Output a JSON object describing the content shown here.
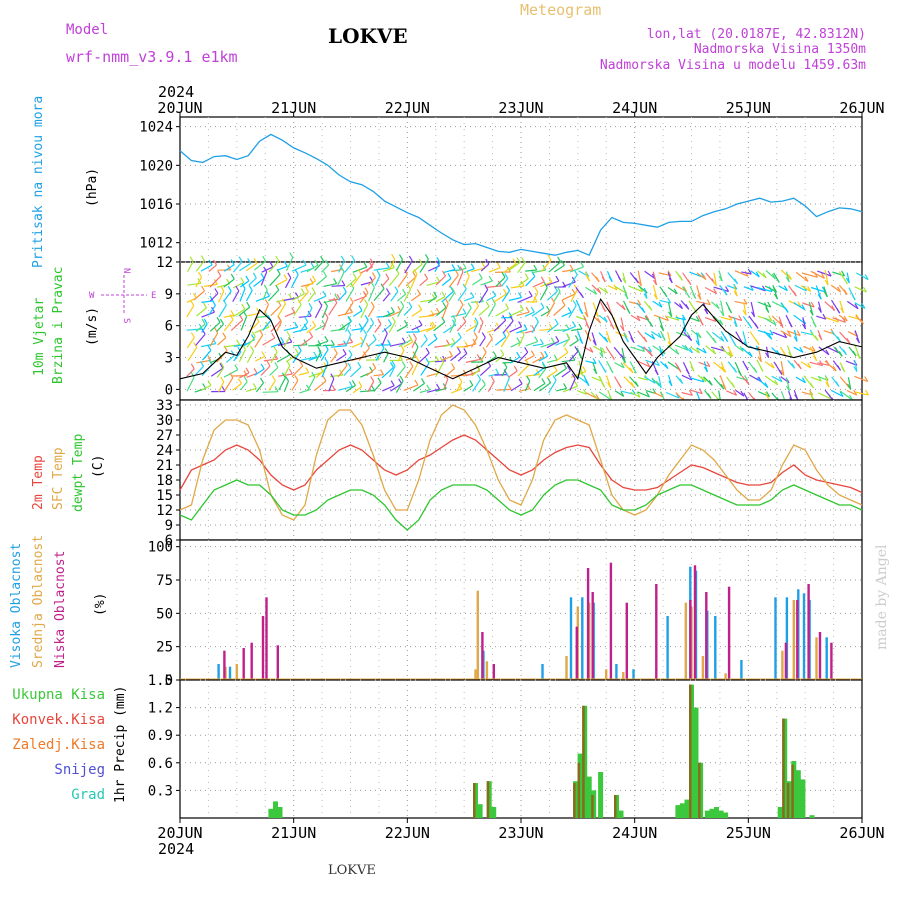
{
  "header": {
    "model_label": "Model",
    "model_name": "wrf-nmm_v3.9.1 e1km",
    "station": "LOKVE",
    "kind": "Meteogram",
    "coords": "lon,lat (20.0187E, 42.8312N)",
    "elevation": "Nadmorska Visina 1350m",
    "model_elevation": "Nadmorska Visina u modelu 1459.63m",
    "year": "2024",
    "footer_station": "LOKVE",
    "watermark": "made by Angel"
  },
  "days": [
    "20JUN",
    "21JUN",
    "22JUN",
    "23JUN",
    "24JUN",
    "25JUN",
    "26JUN"
  ],
  "panel_labels": {
    "pressure": "Pritisak na nivou mora",
    "pressure_unit": "(hPa)",
    "wind_a": "10m Vjetar",
    "wind_b": "Brzina i Pravac",
    "wind_unit": "(m/s)",
    "wind_rose_n": "N",
    "wind_rose_s": "S",
    "wind_rose_w": "W",
    "wind_rose_e": "E",
    "temp_2m": "2m Temp",
    "temp_sfc": "SFC Temp",
    "temp_dew": "dewpt Temp",
    "temp_unit": "(C)",
    "cloud_high": "Visoka Oblacnost",
    "cloud_mid": "Srednja Oblacnost",
    "cloud_low": "Niska Oblacnost",
    "cloud_unit": "(%)",
    "precip_axis": "1hr Precip (mm)"
  },
  "precip_legend": [
    "Ukupna Kisa",
    "Konvek.Kisa",
    "Zaledj.Kisa",
    "Snijeg",
    "Grad"
  ],
  "colors": {
    "pressure": "#1fa0e6",
    "temp_2m": "#e8463c",
    "temp_sfc": "#e0a848",
    "temp_dew": "#2ec62e",
    "cloud_high": "#1fa0e6",
    "cloud_mid": "#e0a848",
    "cloud_low": "#c0208a",
    "precip_total": "#3cc83c",
    "precip_conv": "#e8463c",
    "precip_frz": "#f07a28",
    "precip_snow": "#5050d8",
    "precip_hail": "#28c8b4",
    "title_purple": "#c040d8",
    "title_orange": "#e8c070"
  },
  "chart_data": [
    {
      "type": "line",
      "name": "pressure",
      "ylabel": "Pritisak na nivou mora (hPa)",
      "ylim": [
        1010,
        1025
      ],
      "yticks": [
        1012,
        1016,
        1020,
        1024
      ],
      "x_days": [
        0,
        0.1,
        0.2,
        0.3,
        0.4,
        0.5,
        0.6,
        0.7,
        0.8,
        0.9,
        1.0,
        1.1,
        1.2,
        1.3,
        1.4,
        1.5,
        1.6,
        1.7,
        1.8,
        1.9,
        2.0,
        2.1,
        2.2,
        2.3,
        2.4,
        2.5,
        2.6,
        2.7,
        2.8,
        2.9,
        3.0,
        3.1,
        3.2,
        3.3,
        3.4,
        3.5,
        3.6,
        3.7,
        3.8,
        3.9,
        4.0,
        4.1,
        4.2,
        4.3,
        4.4,
        4.5,
        4.6,
        4.7,
        4.8,
        4.9,
        5.0,
        5.1,
        5.2,
        5.3,
        5.4,
        5.5,
        5.6,
        5.7,
        5.8,
        5.9,
        6.0
      ],
      "values": [
        1021.5,
        1020.5,
        1020.3,
        1020.9,
        1021.0,
        1020.6,
        1021.0,
        1022.5,
        1023.2,
        1022.6,
        1021.8,
        1021.3,
        1020.7,
        1020.0,
        1019.0,
        1018.3,
        1018.0,
        1017.3,
        1016.3,
        1015.7,
        1015.1,
        1014.6,
        1013.8,
        1013.0,
        1012.3,
        1011.8,
        1011.9,
        1011.5,
        1011.1,
        1011.0,
        1011.3,
        1011.1,
        1010.9,
        1010.7,
        1011.0,
        1011.2,
        1010.7,
        1013.3,
        1014.6,
        1014.1,
        1014.0,
        1013.8,
        1013.6,
        1014.1,
        1014.2,
        1014.2,
        1014.8,
        1015.2,
        1015.5,
        1016.0,
        1016.3,
        1016.6,
        1016.2,
        1016.3,
        1016.6,
        1015.8,
        1014.7,
        1015.2,
        1015.6,
        1015.5,
        1015.2
      ]
    },
    {
      "type": "line",
      "name": "wind",
      "ylabel": "10m Vjetar Brzina i Pravac (m/s)",
      "ylim": [
        -1,
        12
      ],
      "yticks": [
        0,
        3,
        6,
        9,
        12
      ],
      "x_days": [
        0,
        0.2,
        0.4,
        0.5,
        0.6,
        0.7,
        0.8,
        0.9,
        1.0,
        1.2,
        1.4,
        1.6,
        1.8,
        2.0,
        2.2,
        2.4,
        2.6,
        2.8,
        3.0,
        3.2,
        3.4,
        3.5,
        3.6,
        3.7,
        3.8,
        3.9,
        4.0,
        4.1,
        4.2,
        4.4,
        4.5,
        4.6,
        4.8,
        5.0,
        5.2,
        5.4,
        5.6,
        5.8,
        6.0
      ],
      "values": [
        1.0,
        1.5,
        3.5,
        3.2,
        5.0,
        7.5,
        6.5,
        4.0,
        3.0,
        2.0,
        2.5,
        3.0,
        3.5,
        3.0,
        2.0,
        1.0,
        2.0,
        3.0,
        2.5,
        2.0,
        2.5,
        1.0,
        5.5,
        8.5,
        7.0,
        4.5,
        3.0,
        1.5,
        3.0,
        5.0,
        7.0,
        8.0,
        5.5,
        4.0,
        3.5,
        3.0,
        3.5,
        4.5,
        4.0
      ]
    },
    {
      "type": "line",
      "name": "temperature",
      "ylabel": "(C)",
      "ylim": [
        6,
        34
      ],
      "yticks": [
        6,
        9,
        12,
        15,
        18,
        21,
        24,
        27,
        30,
        33
      ],
      "x_days": [
        0,
        0.1,
        0.2,
        0.3,
        0.4,
        0.5,
        0.6,
        0.7,
        0.8,
        0.9,
        1.0,
        1.1,
        1.2,
        1.3,
        1.4,
        1.5,
        1.6,
        1.7,
        1.8,
        1.9,
        2.0,
        2.1,
        2.2,
        2.3,
        2.4,
        2.5,
        2.6,
        2.7,
        2.8,
        2.9,
        3.0,
        3.1,
        3.2,
        3.3,
        3.4,
        3.5,
        3.6,
        3.7,
        3.8,
        3.9,
        4.0,
        4.1,
        4.2,
        4.3,
        4.4,
        4.5,
        4.6,
        4.7,
        4.8,
        4.9,
        5.0,
        5.1,
        5.2,
        5.3,
        5.4,
        5.5,
        5.6,
        5.7,
        5.8,
        5.9,
        6.0
      ],
      "series": [
        {
          "name": "2m Temp",
          "values": [
            16.0,
            20.0,
            21.0,
            22.0,
            24.0,
            25.0,
            24.0,
            22.0,
            19.0,
            17.0,
            16.0,
            17.0,
            20.0,
            22.0,
            24.0,
            25.0,
            24.0,
            22.0,
            20.0,
            19.0,
            20.0,
            22.0,
            23.0,
            24.5,
            26.0,
            27.0,
            26.0,
            24.0,
            22.0,
            20.0,
            19.0,
            20.0,
            22.0,
            23.5,
            24.5,
            25.0,
            24.5,
            21.0,
            18.0,
            16.5,
            16.0,
            16.0,
            16.5,
            18.0,
            19.5,
            21.0,
            20.5,
            19.5,
            18.5,
            17.5,
            17.0,
            17.0,
            17.5,
            19.5,
            21.0,
            19.0,
            18.0,
            17.5,
            17.0,
            16.5,
            15.5
          ]
        },
        {
          "name": "SFC Temp",
          "values": [
            12.0,
            13.0,
            22.0,
            28.0,
            30.0,
            30.0,
            29.0,
            24.0,
            15.0,
            11.0,
            10.0,
            13.0,
            23.0,
            30.0,
            32.0,
            32.0,
            29.0,
            23.0,
            16.0,
            12.0,
            12.0,
            18.0,
            26.0,
            31.0,
            33.0,
            32.0,
            29.0,
            24.0,
            18.0,
            14.0,
            13.0,
            18.0,
            26.0,
            30.0,
            31.0,
            30.0,
            29.0,
            22.0,
            15.0,
            12.0,
            11.0,
            12.0,
            15.0,
            19.0,
            22.0,
            25.0,
            24.0,
            22.0,
            19.0,
            16.0,
            14.0,
            14.0,
            16.0,
            21.0,
            25.0,
            24.0,
            20.0,
            17.0,
            15.0,
            14.0,
            13.0
          ]
        },
        {
          "name": "dewpt Temp",
          "values": [
            11.0,
            10.0,
            13.0,
            16.0,
            17.0,
            18.0,
            17.0,
            17.0,
            15.0,
            12.0,
            11.0,
            11.0,
            12.0,
            14.0,
            15.0,
            16.0,
            16.0,
            15.0,
            13.0,
            10.0,
            8.0,
            10.0,
            14.0,
            16.0,
            17.0,
            17.0,
            17.0,
            16.0,
            14.0,
            12.0,
            11.0,
            12.0,
            15.0,
            17.0,
            18.0,
            18.0,
            17.0,
            16.0,
            13.0,
            12.0,
            12.0,
            13.0,
            15.0,
            16.0,
            17.0,
            17.0,
            16.0,
            15.0,
            14.0,
            13.0,
            13.0,
            13.0,
            14.0,
            16.0,
            17.0,
            16.0,
            15.0,
            14.0,
            13.0,
            13.0,
            12.0
          ]
        }
      ]
    },
    {
      "type": "bar",
      "name": "cloud",
      "ylabel": "(%)",
      "ylim": [
        0,
        105
      ],
      "yticks": [
        0,
        25,
        50,
        75,
        100
      ],
      "series": [
        {
          "name": "Visoka Oblacnost",
          "x": [
            0.35,
            0.45,
            2.68,
            3.2,
            3.45,
            3.55,
            3.65,
            3.85,
            4.0,
            4.3,
            4.5,
            4.55,
            4.65,
            4.72,
            4.95,
            5.25,
            5.35,
            5.45,
            5.5,
            5.55,
            5.7
          ],
          "values": [
            12,
            10,
            22,
            12,
            62,
            62,
            58,
            12,
            8,
            48,
            85,
            82,
            52,
            48,
            15,
            62,
            62,
            68,
            65,
            60,
            32
          ]
        },
        {
          "name": "Srednja Oblacnost",
          "x": [
            0.4,
            0.5,
            2.6,
            2.62,
            2.7,
            3.4,
            3.5,
            3.6,
            3.75,
            3.9,
            4.45,
            4.5,
            4.6,
            4.8,
            5.3,
            5.4,
            5.6
          ],
          "values": [
            10,
            12,
            8,
            67,
            14,
            18,
            55,
            58,
            8,
            6,
            58,
            55,
            18,
            5,
            22,
            60,
            32
          ]
        },
        {
          "name": "Niska Oblacnost",
          "x": [
            0.38,
            0.55,
            0.62,
            0.72,
            0.75,
            0.85,
            2.65,
            2.75,
            3.48,
            3.58,
            3.62,
            3.78,
            3.92,
            4.18,
            4.48,
            4.52,
            4.62,
            4.82,
            5.32,
            5.42,
            5.52,
            5.62,
            5.72
          ],
          "values": [
            22,
            24,
            28,
            48,
            62,
            26,
            36,
            12,
            40,
            84,
            66,
            88,
            58,
            72,
            60,
            86,
            66,
            70,
            28,
            60,
            72,
            36,
            28
          ]
        }
      ]
    },
    {
      "type": "bar",
      "name": "precipitation",
      "ylabel": "1hr Precip (mm)",
      "ylim": [
        0,
        1.5
      ],
      "yticks": [
        0.3,
        0.6,
        0.9,
        1.2,
        1.5
      ],
      "x": [
        0.8,
        0.84,
        0.88,
        2.6,
        2.64,
        2.72,
        2.76,
        3.48,
        3.52,
        3.56,
        3.6,
        3.64,
        3.7,
        3.84,
        3.88,
        4.38,
        4.42,
        4.46,
        4.5,
        4.54,
        4.58,
        4.64,
        4.68,
        4.72,
        4.76,
        4.8,
        5.28,
        5.32,
        5.36,
        5.4,
        5.44,
        5.48,
        5.56
      ],
      "series": [
        {
          "name": "Ukupna Kisa",
          "values": [
            0.1,
            0.18,
            0.12,
            0.38,
            0.15,
            0.4,
            0.12,
            0.4,
            0.7,
            1.22,
            0.45,
            0.3,
            0.5,
            0.25,
            0.08,
            0.14,
            0.16,
            0.2,
            1.45,
            1.2,
            0.6,
            0.08,
            0.1,
            0.12,
            0.08,
            0.06,
            0.12,
            1.08,
            0.4,
            0.62,
            0.52,
            0.42,
            0.03
          ]
        },
        {
          "name": "Konvek.Kisa",
          "values": [
            0.0,
            0.0,
            0.0,
            0.38,
            0.0,
            0.4,
            0.0,
            0.38,
            0.6,
            1.22,
            0.0,
            0.25,
            0.0,
            0.25,
            0.0,
            0.0,
            0.0,
            0.0,
            1.45,
            0.0,
            0.6,
            0.0,
            0.0,
            0.0,
            0.0,
            0.0,
            0.0,
            1.08,
            0.38,
            0.58,
            0.0,
            0.0,
            0.0
          ]
        }
      ]
    }
  ]
}
